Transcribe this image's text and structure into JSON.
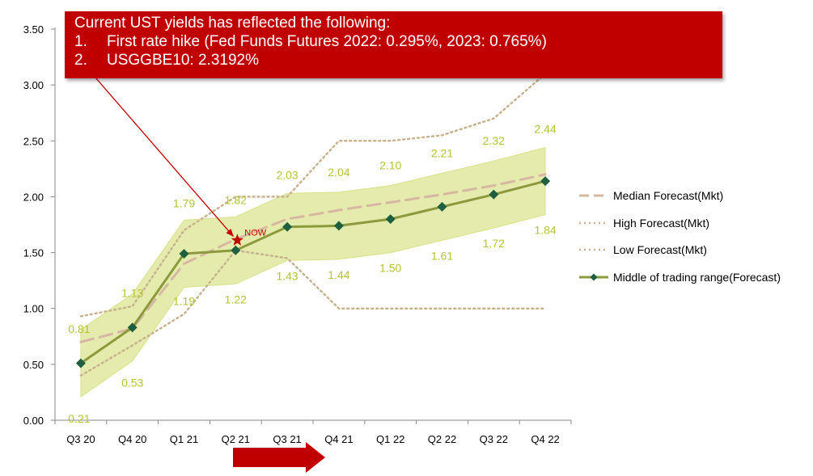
{
  "colors": {
    "band": "#e4ebac",
    "band_stroke": "#d8e28a",
    "median": "#d6b8a0",
    "high": "#c9b28f",
    "low": "#c9b28f",
    "middle_line": "#8a9a3c",
    "middle_marker": "#1f5f3f",
    "data_label": "#b5c436",
    "callout_bg": "#c00000",
    "arrow": "#c00000",
    "now_star": "#c00000"
  },
  "callout": {
    "title": "Current UST yields has reflected the following:",
    "items": [
      {
        "num": "1.",
        "text": "First rate hike (Fed Funds Futures 2022: 0.295%, 2023: 0.765%)"
      },
      {
        "num": "2.",
        "text": "USGGBE10: 2.3192%"
      }
    ]
  },
  "now_label": "NOW",
  "chart_data": {
    "type": "line",
    "categories": [
      "Q3 20",
      "Q4 20",
      "Q1 21",
      "Q2 21",
      "Q3 21",
      "Q4 21",
      "Q1 22",
      "Q2 22",
      "Q3 22",
      "Q4 22"
    ],
    "ylim": [
      0,
      3.5
    ],
    "yticks": [
      "0.00",
      "0.50",
      "1.00",
      "1.50",
      "2.00",
      "2.50",
      "3.00",
      "3.50"
    ],
    "ytick_values": [
      0,
      0.5,
      1.0,
      1.5,
      2.0,
      2.5,
      3.0,
      3.5
    ],
    "grid": false,
    "legend_position": "right",
    "series": [
      {
        "name": "Median Forecast(Mkt)",
        "style": "dashed",
        "values": [
          0.7,
          0.82,
          1.4,
          1.62,
          1.8,
          1.88,
          1.95,
          2.02,
          2.1,
          2.2
        ]
      },
      {
        "name": "High Forecast(Mkt)",
        "style": "dotted",
        "values": [
          0.93,
          1.02,
          1.7,
          2.0,
          2.0,
          2.5,
          2.5,
          2.55,
          2.7,
          3.1
        ]
      },
      {
        "name": "Low Forecast(Mkt)",
        "style": "dotted",
        "values": [
          0.4,
          0.67,
          0.95,
          1.52,
          1.45,
          1.0,
          1.0,
          1.0,
          1.0,
          1.0
        ]
      },
      {
        "name": "Middle of trading range(Forecast)",
        "style": "solid-marker",
        "values": [
          0.51,
          0.83,
          1.49,
          1.52,
          1.73,
          1.74,
          1.8,
          1.91,
          2.02,
          2.14
        ]
      }
    ],
    "range_band": {
      "upper": [
        0.81,
        1.13,
        1.79,
        1.82,
        2.03,
        2.04,
        2.1,
        2.21,
        2.32,
        2.44
      ],
      "lower": [
        0.21,
        0.53,
        1.19,
        1.22,
        1.43,
        1.44,
        1.5,
        1.61,
        1.72,
        1.84
      ],
      "upper_labels": [
        "0.81",
        "1.13",
        "1.79",
        "1.82",
        "2.03",
        "2.04",
        "2.10",
        "2.21",
        "2.32",
        "2.44"
      ],
      "lower_labels": [
        "0.21",
        "0.53",
        "1.19",
        "1.22",
        "1.43",
        "1.44",
        "1.50",
        "1.61",
        "1.72",
        "1.84"
      ]
    },
    "now_marker": {
      "category_index": 3,
      "value": 1.61
    }
  }
}
